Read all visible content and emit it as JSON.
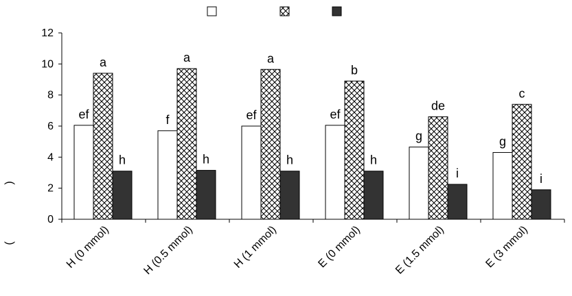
{
  "chart_data": {
    "type": "bar",
    "categories": [
      "H (0 mmol)",
      "H (0.5 mmol)",
      "H (1 mmol)",
      "E (0 mmol)",
      "E (1.5 mmol)",
      "E (3 mmol)"
    ],
    "series": [
      {
        "fill": "white",
        "color": "#ffffff",
        "values": [
          6.05,
          5.7,
          6.0,
          6.05,
          4.65,
          4.3
        ],
        "labels": [
          "ef",
          "f",
          "ef",
          "ef",
          "g",
          "g"
        ]
      },
      {
        "fill": "crosshatch",
        "color": "#ffffff",
        "values": [
          9.4,
          9.7,
          9.65,
          8.9,
          6.6,
          7.4
        ],
        "labels": [
          "a",
          "a",
          "a",
          "b",
          "de",
          "c"
        ]
      },
      {
        "fill": "solid",
        "color": "#333333",
        "values": [
          3.1,
          3.15,
          3.1,
          3.1,
          2.25,
          1.9
        ],
        "labels": [
          "h",
          "h",
          "h",
          "h",
          "i",
          "i"
        ]
      }
    ],
    "yticks": [
      0,
      2,
      4,
      6,
      8,
      10,
      12
    ],
    "ylim": [
      0,
      12
    ],
    "ylabel_parens": [
      ")",
      "("
    ],
    "legend": "top-center",
    "grid": false
  }
}
